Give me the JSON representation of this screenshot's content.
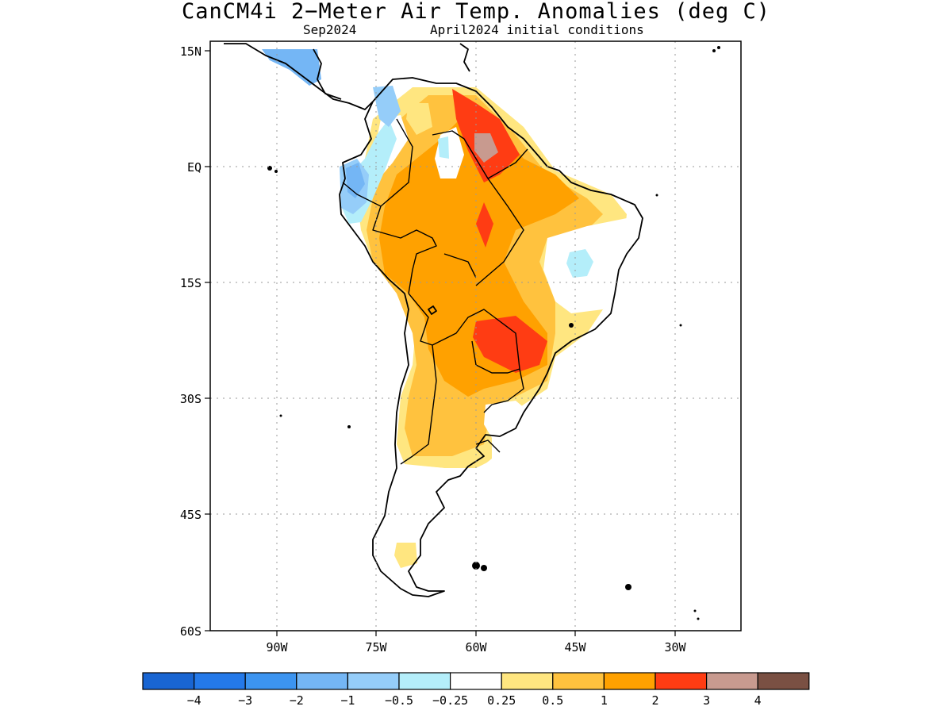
{
  "title": "CanCM4i 2−Meter Air Temp. Anomalies (deg C)",
  "subtitle_left": "Sep2024",
  "subtitle_right": "April2024 initial conditions",
  "axes": {
    "lat_labels": [
      "15N",
      "EQ",
      "15S",
      "30S",
      "45S",
      "60S"
    ],
    "lon_labels": [
      "90W",
      "75W",
      "60W",
      "45W",
      "30W"
    ],
    "lat_range": [
      -60,
      15
    ],
    "lon_range": [
      -100,
      -20
    ]
  },
  "grid": "dotted",
  "colorbar": {
    "labels": [
      "−4",
      "−3",
      "−2",
      "−1",
      "−0.5",
      "−0.25",
      "0.25",
      "0.5",
      "1",
      "2",
      "3",
      "4"
    ],
    "colors": [
      "#1965d2",
      "#2479e9",
      "#3c94f0",
      "#74b6f5",
      "#95cdf9",
      "#b4eefa",
      "#ffffff",
      "#ffe680",
      "#ffc23e",
      "#ffa100",
      "#ff3c13",
      "#c89a8f",
      "#7a5043"
    ]
  }
}
